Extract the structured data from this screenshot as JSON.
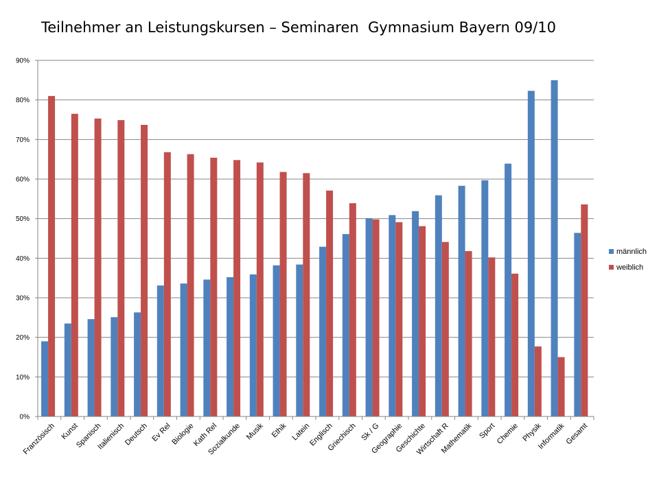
{
  "chart_data": {
    "type": "bar",
    "title": "Teilnehmer an Leistungskursen – Seminaren  Gymnasium Bayern 09/10",
    "xlabel": "",
    "ylabel": "",
    "ylim": [
      0,
      90
    ],
    "yticks": [
      "0%",
      "10%",
      "20%",
      "30%",
      "40%",
      "50%",
      "60%",
      "70%",
      "80%",
      "90%"
    ],
    "ytick_values": [
      0,
      10,
      20,
      30,
      40,
      50,
      60,
      70,
      80,
      90
    ],
    "grid": true,
    "legend_position": "right",
    "categories": [
      "Französisch",
      "Kunst",
      "Spanisch",
      "Italienisch",
      "Deutsch",
      "Ev Rel",
      "Biologie",
      "Kath Rel",
      "Sozialkunde",
      "Musik",
      "Ethik",
      "Latein",
      "Englisch",
      "Griechisch",
      "Sk / G",
      "Geographie",
      "Geschichte",
      "Wirtschaft R",
      "Mathematik",
      "Sport",
      "Chemie",
      "Physik",
      "Informatik",
      "Gesamt"
    ],
    "series": [
      {
        "name": "männlich",
        "color": "#4F81BD",
        "values": [
          19,
          23.5,
          24.6,
          25.1,
          26.3,
          33.1,
          33.6,
          34.6,
          35.2,
          35.9,
          38.2,
          38.4,
          42.9,
          46.1,
          50.1,
          50.9,
          51.9,
          55.9,
          58.3,
          59.7,
          63.9,
          82.3,
          85,
          46.4
        ]
      },
      {
        "name": "weiblich",
        "color": "#C0504D",
        "values": [
          81,
          76.5,
          75.3,
          74.9,
          73.7,
          66.8,
          66.3,
          65.4,
          64.8,
          64.2,
          61.8,
          61.5,
          57.1,
          53.9,
          49.8,
          49.1,
          48.1,
          44.1,
          41.8,
          40.2,
          36.1,
          17.7,
          15,
          53.6
        ]
      }
    ]
  }
}
